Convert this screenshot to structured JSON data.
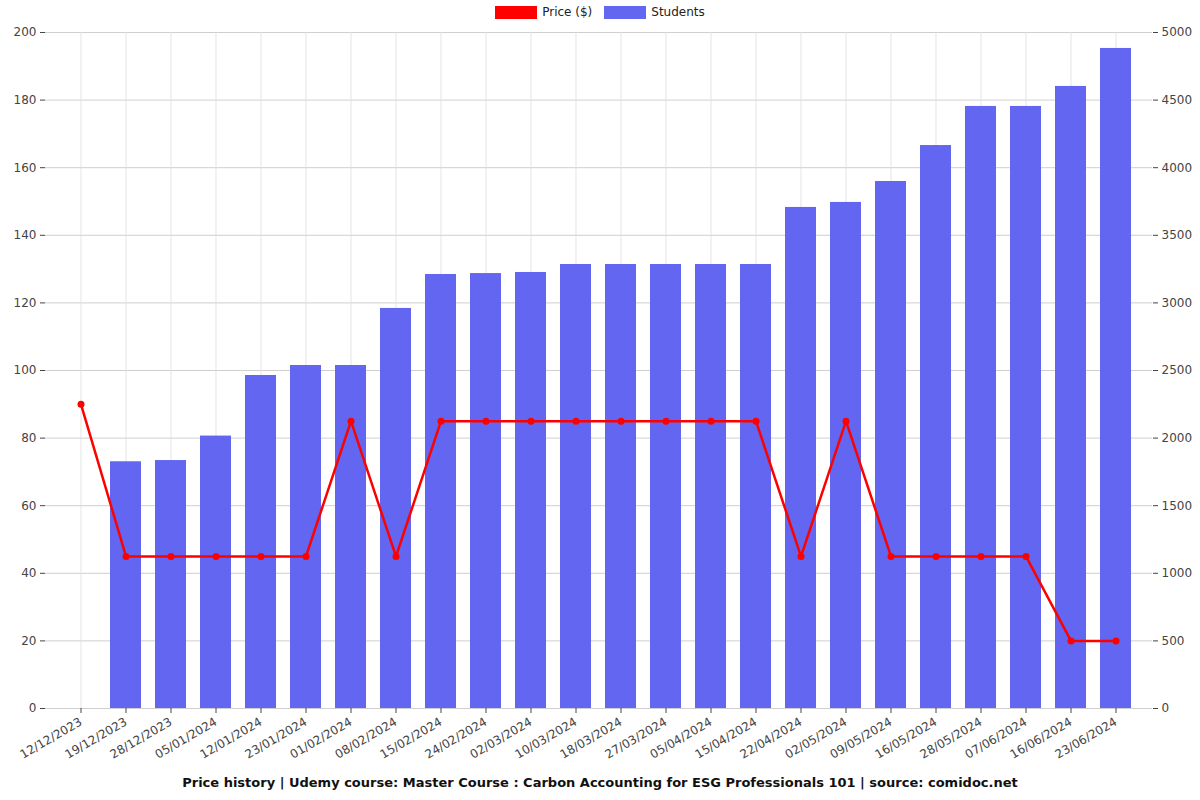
{
  "chart_data": {
    "type": "bar",
    "title": "Price history | Udemy course: Master Course : Carbon Accounting for ESG Professionals 101 | source: comidoc.net",
    "categories": [
      "12/12/2023",
      "19/12/2023",
      "28/12/2023",
      "05/01/2024",
      "12/01/2024",
      "23/01/2024",
      "01/02/2024",
      "08/02/2024",
      "15/02/2024",
      "24/02/2024",
      "02/03/2024",
      "10/03/2024",
      "18/03/2024",
      "27/03/2024",
      "05/04/2024",
      "15/04/2024",
      "22/04/2024",
      "02/05/2024",
      "09/05/2024",
      "16/05/2024",
      "28/05/2024",
      "07/06/2024",
      "16/06/2024",
      "23/06/2024"
    ],
    "series": [
      {
        "name": "Price ($)",
        "type": "line",
        "color": "#ff0000",
        "marker": "circle",
        "values": [
          90,
          45,
          45,
          45,
          45,
          45,
          85,
          45,
          85,
          85,
          85,
          85,
          85,
          85,
          85,
          85,
          45,
          85,
          45,
          45,
          45,
          45,
          20,
          20
        ]
      },
      {
        "name": "Students",
        "type": "bar",
        "axis": "y2",
        "color": "#6366f1",
        "values": [
          0,
          1825,
          1834,
          2015,
          2463,
          2537,
          2537,
          2959,
          3210,
          3217,
          3225,
          3284,
          3284,
          3284,
          3284,
          3284,
          3706,
          3743,
          3898,
          4164,
          4453,
          4453,
          4601,
          4882
        ]
      }
    ],
    "ylim": [
      0,
      200
    ],
    "yticks": [
      0,
      20,
      40,
      60,
      80,
      100,
      120,
      140,
      160,
      180,
      200
    ],
    "y2lim": [
      0,
      5000
    ],
    "y2ticks": [
      0,
      500,
      1000,
      1500,
      2000,
      2500,
      3000,
      3500,
      4000,
      4500,
      5000
    ],
    "grid": true,
    "legend": "top"
  }
}
